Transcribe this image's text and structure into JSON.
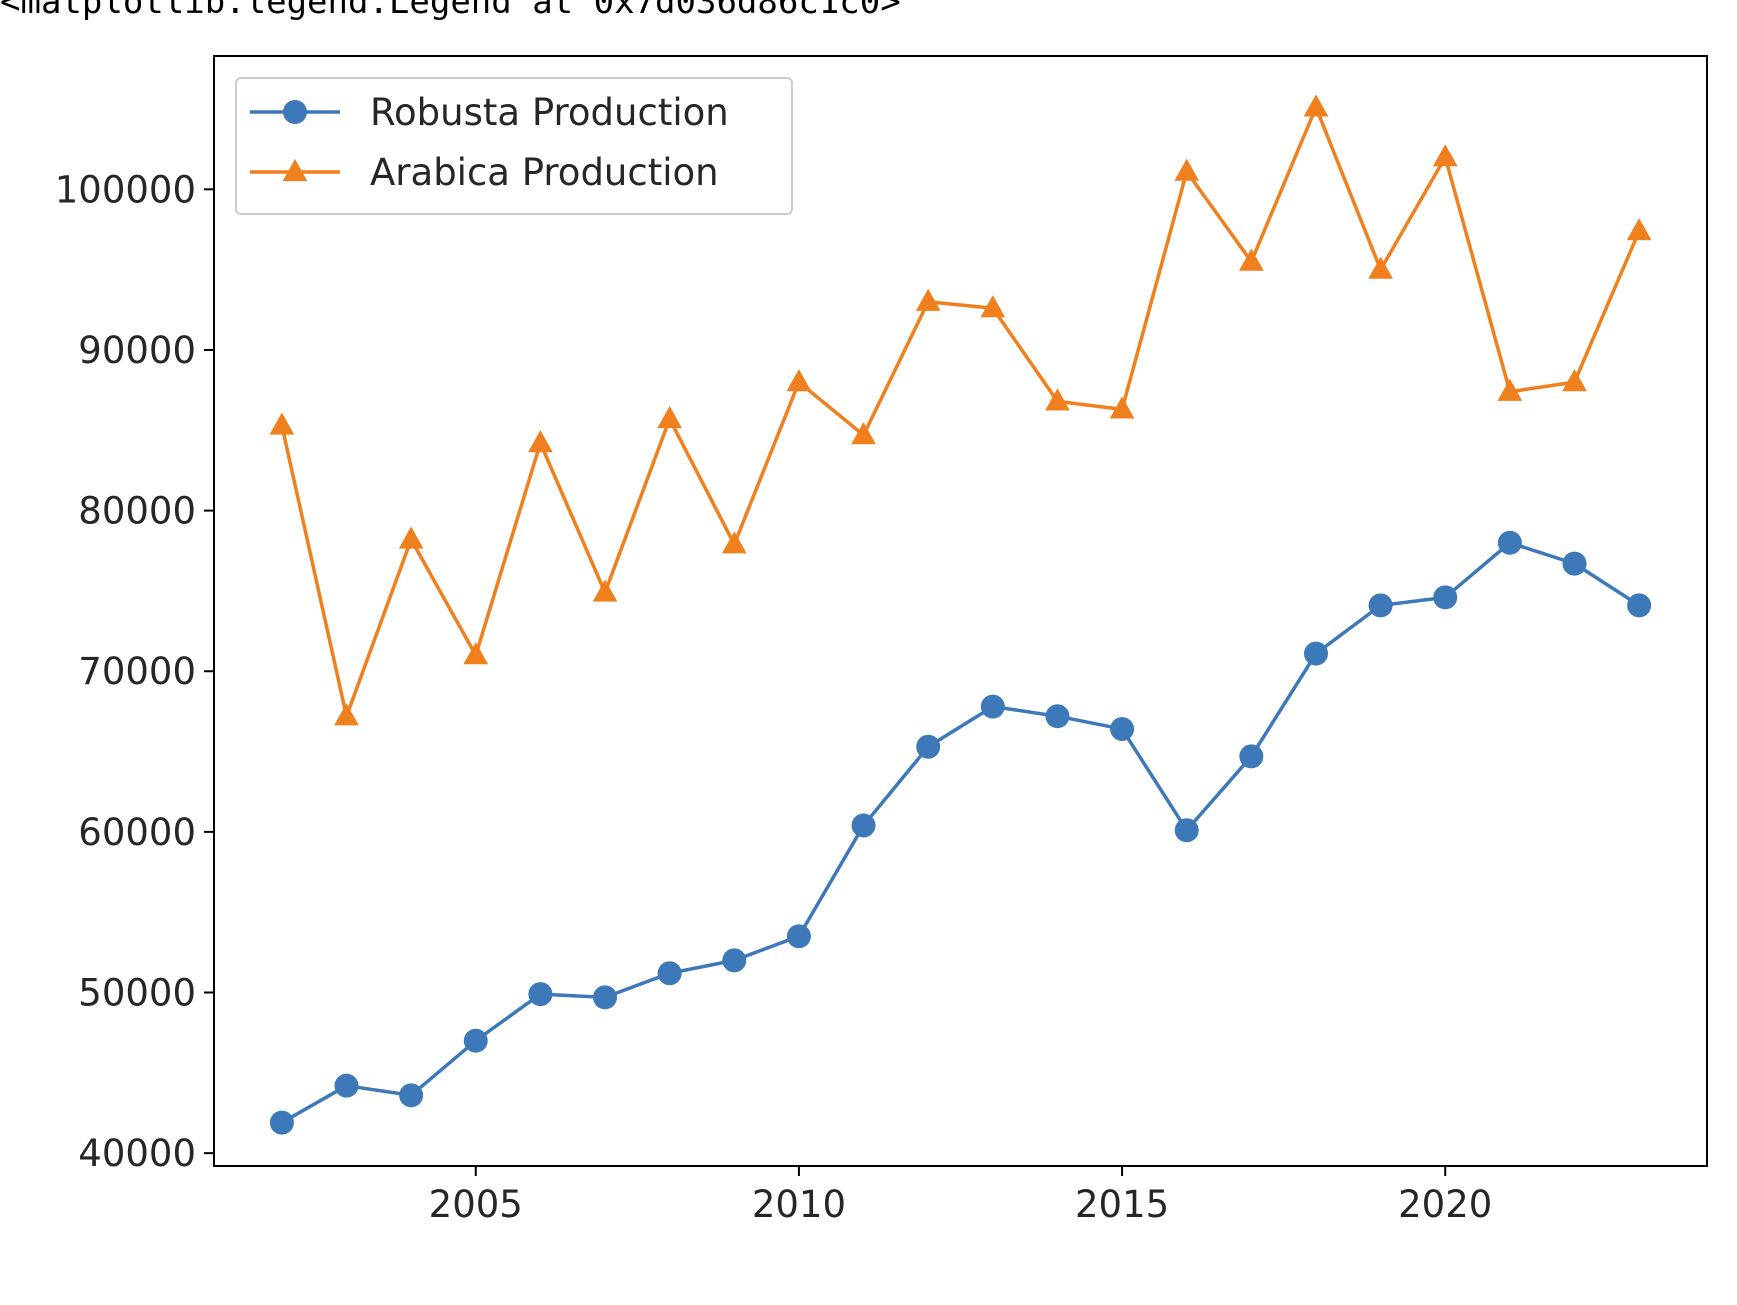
{
  "output_text": "<matplotlib.legend.Legend at 0x7d036d86c1c0>",
  "colors": {
    "robusta": "#3d79b8",
    "arabica": "#f07f1d",
    "axes": "#000000"
  },
  "chart_data": {
    "type": "line",
    "title": "",
    "xlabel": "",
    "ylabel": "",
    "x": [
      2002,
      2003,
      2004,
      2005,
      2006,
      2007,
      2008,
      2009,
      2010,
      2011,
      2012,
      2013,
      2014,
      2015,
      2016,
      2017,
      2018,
      2019,
      2020,
      2021,
      2022,
      2023
    ],
    "xlim": [
      2000.95,
      2024.05
    ],
    "ylim": [
      39200,
      108300
    ],
    "xticks": [
      2005,
      2010,
      2015,
      2020
    ],
    "xtick_labels": [
      "2005",
      "2010",
      "2015",
      "2020"
    ],
    "yticks": [
      40000,
      50000,
      60000,
      70000,
      80000,
      90000,
      100000
    ],
    "ytick_labels": [
      "40000",
      "50000",
      "60000",
      "70000",
      "80000",
      "90000",
      "100000"
    ],
    "grid": false,
    "legend_position": "top-left",
    "series": [
      {
        "name": "Robusta Production",
        "marker": "circle",
        "color": "#3d79b8",
        "values": [
          41900,
          44200,
          43600,
          47000,
          49900,
          49700,
          51200,
          52000,
          53500,
          60400,
          65300,
          67800,
          67200,
          66400,
          60100,
          64700,
          71100,
          74100,
          74600,
          78000,
          76700,
          74100
        ]
      },
      {
        "name": "Arabica Production",
        "marker": "triangle",
        "color": "#f07f1d",
        "values": [
          85300,
          67200,
          78200,
          71000,
          84200,
          74900,
          85700,
          77900,
          88000,
          84700,
          93000,
          92600,
          86800,
          86300,
          101100,
          95500,
          105100,
          95000,
          102000,
          87400,
          88000,
          97400
        ]
      }
    ]
  }
}
